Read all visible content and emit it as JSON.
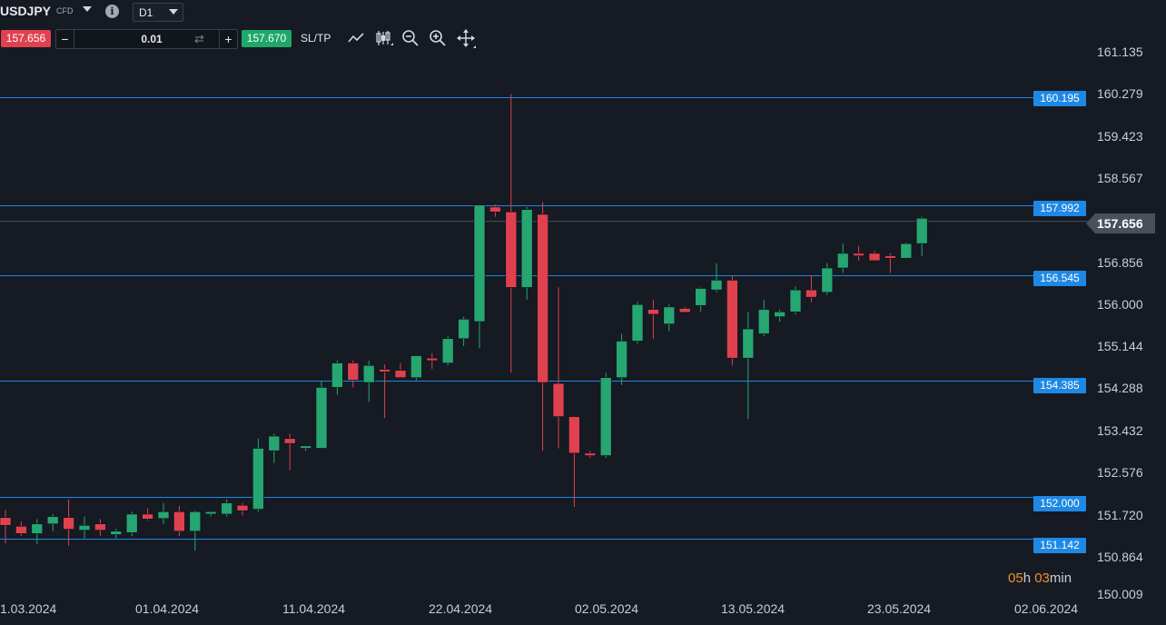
{
  "header": {
    "symbol": "USDJPY",
    "symbol_type": "CFD",
    "timeframe": "D1",
    "sell_price": "157.656",
    "buy_price": "157.670",
    "quantity": "0.01",
    "sltp_label": "SL/TP",
    "icons": [
      "chevron-down-icon",
      "info-icon",
      "line-chart-icon",
      "candles-icon",
      "zoom-out-icon",
      "zoom-in-icon",
      "move-icon",
      "swap-icon"
    ]
  },
  "countdown": {
    "h": "05",
    "h_unit": "h",
    "m": "03",
    "m_unit": "min"
  },
  "colors": {
    "bull": "#26a671",
    "bear": "#e0414f",
    "level": "#1e88e5",
    "background": "#161a23"
  },
  "chart_data": {
    "type": "candlestick",
    "symbol": "USDJPY",
    "timeframe": "D1",
    "ylim": [
      150.009,
      161.135
    ],
    "y_ticks": [
      "161.135",
      "160.279",
      "159.423",
      "158.567",
      "157.656",
      "156.856",
      "156.000",
      "155.144",
      "154.288",
      "153.432",
      "152.576",
      "151.720",
      "150.864",
      "150.009"
    ],
    "x_ticks": [
      "1.03.2024",
      "01.04.2024",
      "11.04.2024",
      "22.04.2024",
      "02.05.2024",
      "13.05.2024",
      "23.05.2024",
      "02.06.2024"
    ],
    "current_price": 157.656,
    "levels": [
      {
        "value": 160.195,
        "label": "160.195"
      },
      {
        "value": 157.992,
        "label": "157.992"
      },
      {
        "value": 156.545,
        "label": "156.545"
      },
      {
        "value": 154.385,
        "label": "154.385"
      },
      {
        "value": 152.0,
        "label": "152.000"
      },
      {
        "value": 151.142,
        "label": "151.142"
      }
    ],
    "candles": [
      {
        "o": 151.58,
        "h": 151.73,
        "l": 151.05,
        "c": 151.42
      },
      {
        "o": 151.4,
        "h": 151.5,
        "l": 151.2,
        "c": 151.25
      },
      {
        "o": 151.25,
        "h": 151.55,
        "l": 151.03,
        "c": 151.45
      },
      {
        "o": 151.45,
        "h": 151.65,
        "l": 151.3,
        "c": 151.6
      },
      {
        "o": 151.58,
        "h": 151.95,
        "l": 151.0,
        "c": 151.34
      },
      {
        "o": 151.32,
        "h": 151.6,
        "l": 151.15,
        "c": 151.42
      },
      {
        "o": 151.45,
        "h": 151.55,
        "l": 151.2,
        "c": 151.32
      },
      {
        "o": 151.23,
        "h": 151.35,
        "l": 151.15,
        "c": 151.3
      },
      {
        "o": 151.27,
        "h": 151.7,
        "l": 151.2,
        "c": 151.65
      },
      {
        "o": 151.65,
        "h": 151.77,
        "l": 151.52,
        "c": 151.55
      },
      {
        "o": 151.56,
        "h": 151.88,
        "l": 151.45,
        "c": 151.7
      },
      {
        "o": 151.7,
        "h": 151.82,
        "l": 151.2,
        "c": 151.3
      },
      {
        "o": 151.3,
        "h": 151.72,
        "l": 150.9,
        "c": 151.7
      },
      {
        "o": 151.65,
        "h": 151.7,
        "l": 151.6,
        "c": 151.7
      },
      {
        "o": 151.65,
        "h": 151.95,
        "l": 151.6,
        "c": 151.88
      },
      {
        "o": 151.83,
        "h": 151.88,
        "l": 151.62,
        "c": 151.72
      },
      {
        "o": 151.75,
        "h": 153.2,
        "l": 151.7,
        "c": 153.0
      },
      {
        "o": 152.95,
        "h": 153.3,
        "l": 152.7,
        "c": 153.25
      },
      {
        "o": 153.2,
        "h": 153.3,
        "l": 152.55,
        "c": 153.1
      },
      {
        "o": 153.0,
        "h": 153.05,
        "l": 152.95,
        "c": 153.05
      },
      {
        "o": 153.0,
        "h": 154.38,
        "l": 153.0,
        "c": 154.25
      },
      {
        "o": 154.25,
        "h": 154.8,
        "l": 154.1,
        "c": 154.75
      },
      {
        "o": 154.75,
        "h": 154.8,
        "l": 154.25,
        "c": 154.4
      },
      {
        "o": 154.35,
        "h": 154.8,
        "l": 153.95,
        "c": 154.7
      },
      {
        "o": 154.62,
        "h": 154.72,
        "l": 153.62,
        "c": 154.57
      },
      {
        "o": 154.6,
        "h": 154.75,
        "l": 154.45,
        "c": 154.45
      },
      {
        "o": 154.45,
        "h": 154.9,
        "l": 154.4,
        "c": 154.9
      },
      {
        "o": 154.85,
        "h": 154.95,
        "l": 154.63,
        "c": 154.8
      },
      {
        "o": 154.75,
        "h": 155.3,
        "l": 154.7,
        "c": 155.25
      },
      {
        "o": 155.25,
        "h": 155.7,
        "l": 155.1,
        "c": 155.65
      },
      {
        "o": 155.6,
        "h": 158.0,
        "l": 155.05,
        "c": 157.99
      },
      {
        "o": 157.95,
        "h": 158.0,
        "l": 157.75,
        "c": 157.85
      },
      {
        "o": 157.85,
        "h": 160.27,
        "l": 154.55,
        "c": 156.3
      },
      {
        "o": 156.3,
        "h": 157.95,
        "l": 156.05,
        "c": 157.9
      },
      {
        "o": 157.8,
        "h": 158.05,
        "l": 152.95,
        "c": 154.35
      },
      {
        "o": 154.33,
        "h": 156.3,
        "l": 153.0,
        "c": 153.65
      },
      {
        "o": 153.65,
        "h": 153.67,
        "l": 151.8,
        "c": 152.9
      },
      {
        "o": 152.9,
        "h": 152.95,
        "l": 152.8,
        "c": 152.85
      },
      {
        "o": 152.85,
        "h": 154.55,
        "l": 152.8,
        "c": 154.45
      },
      {
        "o": 154.45,
        "h": 155.35,
        "l": 154.3,
        "c": 155.2
      },
      {
        "o": 155.2,
        "h": 156.0,
        "l": 155.15,
        "c": 155.95
      },
      {
        "o": 155.85,
        "h": 156.05,
        "l": 155.25,
        "c": 155.75
      },
      {
        "o": 155.55,
        "h": 155.95,
        "l": 155.4,
        "c": 155.9
      },
      {
        "o": 155.87,
        "h": 155.9,
        "l": 155.79,
        "c": 155.79
      },
      {
        "o": 155.93,
        "h": 156.3,
        "l": 155.8,
        "c": 156.28
      },
      {
        "o": 156.25,
        "h": 156.8,
        "l": 156.2,
        "c": 156.45
      },
      {
        "o": 156.45,
        "h": 156.55,
        "l": 154.7,
        "c": 154.85
      },
      {
        "o": 154.85,
        "h": 155.8,
        "l": 153.6,
        "c": 155.45
      },
      {
        "o": 155.35,
        "h": 156.05,
        "l": 155.3,
        "c": 155.85
      },
      {
        "o": 155.7,
        "h": 155.85,
        "l": 155.6,
        "c": 155.8
      },
      {
        "o": 155.8,
        "h": 156.32,
        "l": 155.75,
        "c": 156.25
      },
      {
        "o": 156.25,
        "h": 156.55,
        "l": 156.0,
        "c": 156.1
      },
      {
        "o": 156.2,
        "h": 156.8,
        "l": 156.15,
        "c": 156.7
      },
      {
        "o": 156.7,
        "h": 157.2,
        "l": 156.6,
        "c": 157.0
      },
      {
        "o": 157.0,
        "h": 157.15,
        "l": 156.85,
        "c": 156.95
      },
      {
        "o": 157.0,
        "h": 157.05,
        "l": 156.85,
        "c": 156.85
      },
      {
        "o": 156.95,
        "h": 157.0,
        "l": 156.6,
        "c": 156.9
      },
      {
        "o": 156.9,
        "h": 157.22,
        "l": 156.95,
        "c": 157.2
      },
      {
        "o": 157.2,
        "h": 157.75,
        "l": 156.95,
        "c": 157.72
      }
    ]
  }
}
